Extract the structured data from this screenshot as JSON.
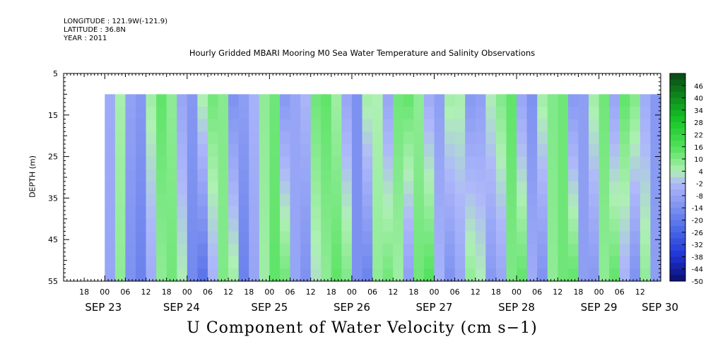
{
  "header": {
    "longitude": "LONGITUDE : 121.9W(-121.9)",
    "latitude": "LATITUDE : 36.8N",
    "year": "YEAR : 2011",
    "title": "Hourly Gridded MBARI Mooring M0 Sea Water Temperature and Salinity Observations"
  },
  "chart_data": {
    "type": "heatmap",
    "title": "Hourly Gridded MBARI Mooring M0 Sea Water Temperature and Salinity Observations",
    "xlabel": "U Component of Water Velocity (cm s−1)",
    "ylabel": "DEPTH (m)",
    "y_ticks": [
      "5",
      "15",
      "25",
      "35",
      "45",
      "55"
    ],
    "ylim": [
      5,
      55
    ],
    "y_inverted": true,
    "data_depth_range": [
      10,
      55
    ],
    "x_hour_ticks": [
      "18",
      "00",
      "06",
      "12",
      "18",
      "00",
      "06",
      "12",
      "18",
      "00",
      "06",
      "12",
      "18",
      "00",
      "06",
      "12",
      "18",
      "00",
      "06",
      "12",
      "18",
      "00",
      "06",
      "12",
      "18",
      "00",
      "06",
      "12"
    ],
    "x_day_labels": [
      "SEP 23",
      "SEP 24",
      "SEP 25",
      "SEP 26",
      "SEP 27",
      "SEP 28",
      "SEP 29",
      "SEP 30"
    ],
    "x_start": "SEP 23 12:00",
    "x_end": "SEP 30 18:00",
    "data_start": "SEP 24 00:00",
    "colorbar": {
      "labels": [
        "46",
        "40",
        "34",
        "28",
        "22",
        "16",
        "10",
        "4",
        "-2",
        "-8",
        "-14",
        "-20",
        "-26",
        "-32",
        "-38",
        "-44",
        "-50"
      ],
      "min": -50,
      "max": 52,
      "step": 3
    },
    "column_hours": [
      0,
      3,
      6,
      9,
      12,
      15,
      18,
      21,
      24,
      27,
      30,
      33,
      36,
      39,
      42,
      45,
      48,
      51,
      54,
      57,
      60,
      63,
      66,
      69,
      72,
      75,
      78,
      81,
      84,
      87,
      90,
      93,
      96,
      99,
      102,
      105,
      108,
      111,
      114,
      117,
      120,
      123,
      126,
      129,
      132,
      135,
      138,
      141,
      144,
      147,
      150,
      153,
      156,
      159,
      162,
      165
    ],
    "velocity_surface": [
      -6,
      5,
      -9,
      -12,
      6,
      14,
      8,
      -8,
      -12,
      5,
      12,
      9,
      -14,
      -10,
      -4,
      8,
      12,
      -12,
      -8,
      -3,
      12,
      14,
      6,
      -8,
      -14,
      6,
      4,
      -8,
      12,
      14,
      8,
      -6,
      -10,
      6,
      5,
      -12,
      -10,
      4,
      10,
      14,
      -8,
      -14,
      6,
      10,
      12,
      -12,
      -10,
      6,
      12,
      -8,
      14,
      10,
      -6,
      -12,
      -8,
      -12
    ],
    "velocity_bottom": [
      -8,
      8,
      -14,
      -18,
      -6,
      8,
      12,
      4,
      -16,
      -22,
      -4,
      10,
      6,
      -18,
      -8,
      6,
      14,
      12,
      -8,
      -14,
      2,
      8,
      14,
      10,
      -14,
      -18,
      8,
      12,
      6,
      -10,
      12,
      16,
      -4,
      -14,
      -8,
      8,
      4,
      -12,
      -8,
      10,
      14,
      -6,
      -14,
      8,
      12,
      14,
      -10,
      -12,
      8,
      14,
      -4,
      -14,
      8,
      -10,
      -14,
      -12
    ]
  }
}
